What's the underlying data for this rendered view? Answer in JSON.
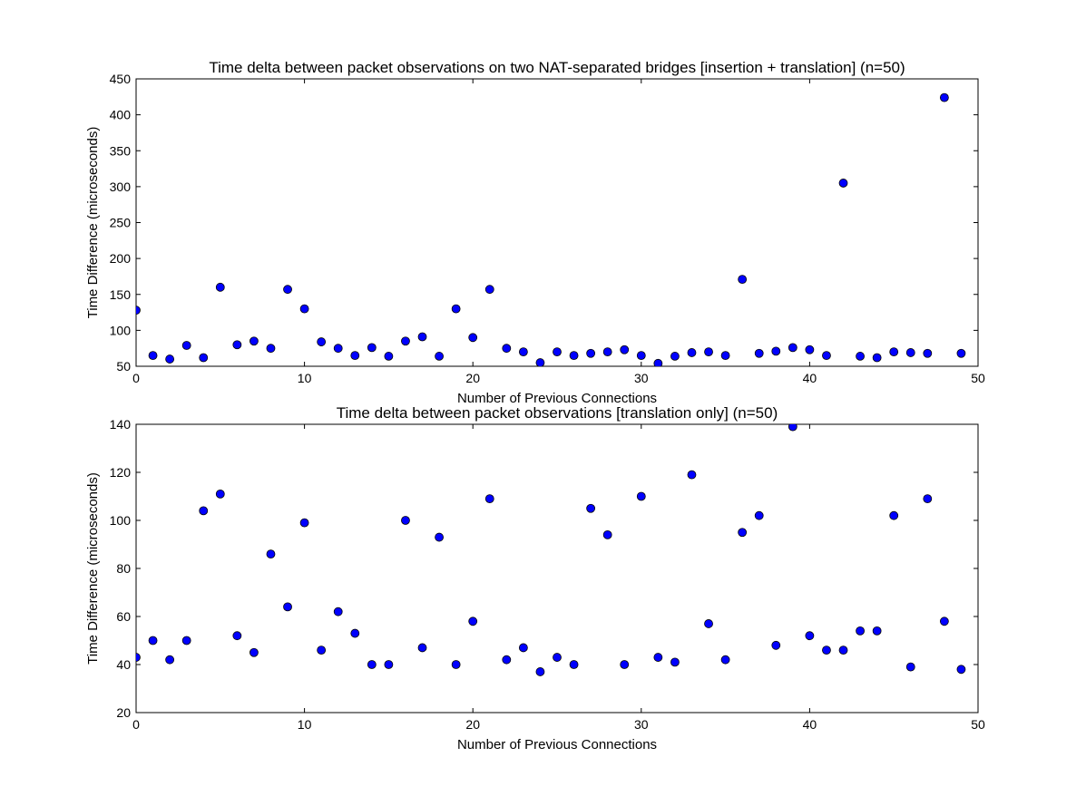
{
  "chart_data": [
    {
      "type": "scatter",
      "title": "Time delta between packet observations on two NAT-separated bridges [insertion + translation] (n=50)",
      "xlabel": "Number of Previous Connections",
      "ylabel": "Time Difference (microseconds)",
      "xlim": [
        0,
        50
      ],
      "ylim": [
        50,
        450
      ],
      "xticks": [
        0,
        10,
        20,
        30,
        40,
        50
      ],
      "yticks": [
        50,
        100,
        150,
        200,
        250,
        300,
        350,
        400,
        450
      ],
      "grid": false,
      "marker_color": "#0000ff",
      "x": [
        0,
        1,
        2,
        3,
        4,
        5,
        6,
        7,
        8,
        9,
        10,
        11,
        12,
        13,
        14,
        15,
        16,
        17,
        18,
        19,
        20,
        21,
        22,
        23,
        24,
        25,
        26,
        27,
        28,
        29,
        30,
        31,
        32,
        33,
        34,
        35,
        36,
        37,
        38,
        39,
        40,
        41,
        42,
        43,
        44,
        45,
        46,
        47,
        48,
        49
      ],
      "y": [
        128,
        65,
        60,
        79,
        62,
        160,
        80,
        85,
        75,
        157,
        130,
        84,
        75,
        65,
        76,
        64,
        85,
        91,
        64,
        130,
        90,
        157,
        75,
        70,
        55,
        70,
        65,
        68,
        70,
        73,
        65,
        54,
        64,
        69,
        70,
        65,
        171,
        68,
        71,
        76,
        73,
        65,
        305,
        64,
        62,
        70,
        69,
        68,
        424,
        68
      ]
    },
    {
      "type": "scatter",
      "title": "Time delta between packet observations [translation only] (n=50)",
      "xlabel": "Number of Previous Connections",
      "ylabel": "Time Difference (microseconds)",
      "xlim": [
        0,
        50
      ],
      "ylim": [
        20,
        140
      ],
      "xticks": [
        0,
        10,
        20,
        30,
        40,
        50
      ],
      "yticks": [
        20,
        40,
        60,
        80,
        100,
        120,
        140
      ],
      "grid": false,
      "marker_color": "#0000ff",
      "x": [
        0,
        1,
        2,
        3,
        4,
        5,
        6,
        7,
        8,
        9,
        10,
        11,
        12,
        13,
        14,
        15,
        16,
        17,
        18,
        19,
        20,
        21,
        22,
        23,
        24,
        25,
        26,
        27,
        28,
        29,
        30,
        31,
        32,
        33,
        34,
        35,
        36,
        37,
        38,
        39,
        40,
        41,
        42,
        43,
        44,
        45,
        46,
        47,
        48,
        49
      ],
      "y": [
        43,
        50,
        42,
        50,
        104,
        111,
        52,
        45,
        86,
        64,
        99,
        46,
        62,
        53,
        40,
        40,
        100,
        47,
        93,
        40,
        58,
        109,
        42,
        47,
        37,
        43,
        40,
        105,
        94,
        40,
        110,
        43,
        41,
        119,
        57,
        42,
        95,
        102,
        48,
        139,
        52,
        46,
        46,
        54,
        54,
        102,
        39,
        109,
        58,
        38
      ]
    }
  ]
}
